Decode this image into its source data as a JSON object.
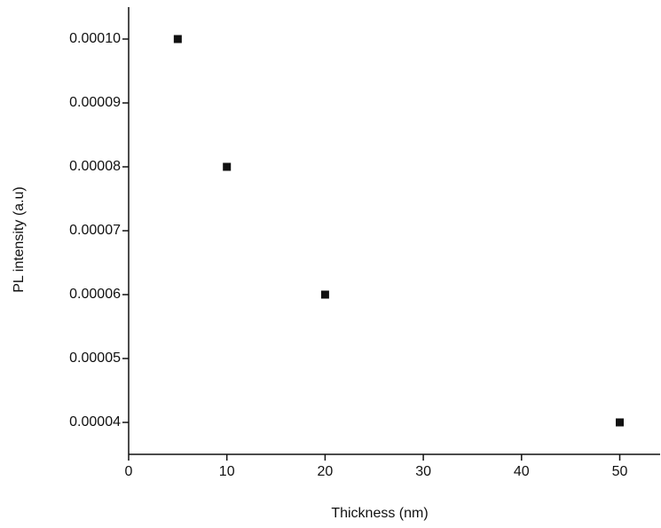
{
  "chart_data": {
    "type": "scatter",
    "x_label": "Thickness (nm)",
    "y_label": "PL intensity (a.u)",
    "series": [
      {
        "color": "#111111",
        "x": [
          5,
          10,
          20,
          50
        ],
        "values": [
          0.0001,
          8e-05,
          6e-05,
          4e-05
        ]
      }
    ],
    "xlim": [
      0,
      54.2
    ],
    "xticks": [
      0,
      10,
      20,
      30,
      40,
      50
    ],
    "ylim": [
      3.5e-05,
      0.000105
    ],
    "yticks": [
      {
        "value": 4e-05,
        "label": "0.00004"
      },
      {
        "value": 5e-05,
        "label": "0.00005"
      },
      {
        "value": 6e-05,
        "label": "0.00006"
      },
      {
        "value": 7e-05,
        "label": "0.00007"
      },
      {
        "value": 8e-05,
        "label": "0.00008"
      },
      {
        "value": 9e-05,
        "label": "0.00009"
      },
      {
        "value": 0.0001,
        "label": "0.00010"
      }
    ],
    "grid": false
  }
}
